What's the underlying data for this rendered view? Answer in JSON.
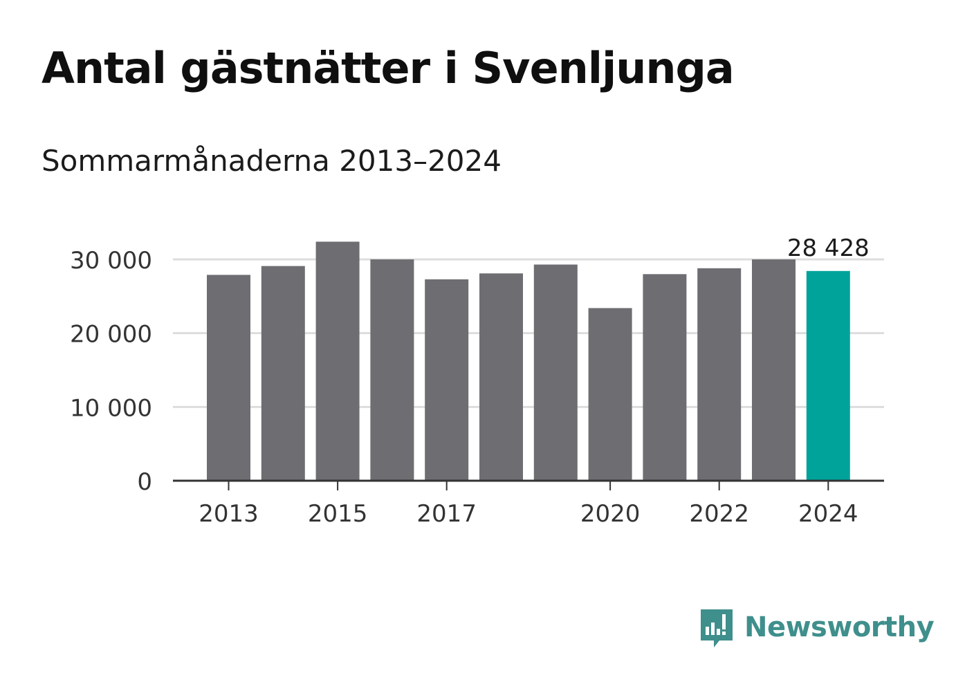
{
  "title": "Antal gästnätter i Svenljunga",
  "subtitle": "Sommarmånaderna 2013–2024",
  "brand": {
    "name": "Newsworthy",
    "color": "#3f8f8c"
  },
  "colors": {
    "bar": "#6e6d72",
    "highlight": "#00a39a",
    "grid": "#dddddd",
    "axis": "#333333"
  },
  "chart_data": {
    "type": "bar",
    "categories": [
      "2013",
      "2014",
      "2015",
      "2016",
      "2017",
      "2018",
      "2019",
      "2020",
      "2021",
      "2022",
      "2023",
      "2024"
    ],
    "values": [
      27900,
      29100,
      32400,
      30000,
      27300,
      28100,
      29300,
      23400,
      28000,
      28800,
      30000,
      28428
    ],
    "highlight_index": 11,
    "data_labels": [
      {
        "index": 11,
        "text": "28 428"
      }
    ],
    "x_tick_labels": [
      "2013",
      "2015",
      "2017",
      "2020",
      "2022",
      "2024"
    ],
    "y_ticks": [
      {
        "value": 0,
        "label": "0"
      },
      {
        "value": 10000,
        "label": "10 000"
      },
      {
        "value": 20000,
        "label": "20 000"
      },
      {
        "value": 30000,
        "label": "30 000"
      }
    ],
    "ylim": [
      0,
      30000
    ],
    "grid": true,
    "legend": false,
    "xlabel": "",
    "ylabel": ""
  }
}
